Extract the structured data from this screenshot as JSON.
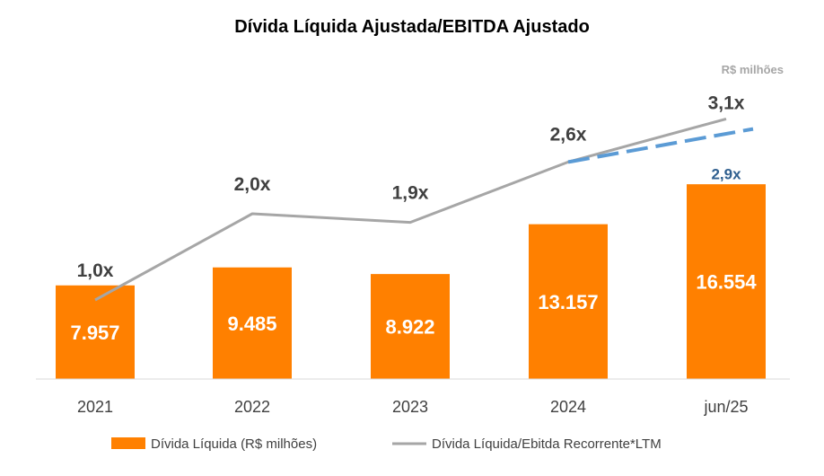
{
  "chart_data": {
    "type": "bar",
    "title": "Dívida Líquida Ajustada/EBITDA Ajustado",
    "unit_note": "R$ milhões",
    "categories": [
      "2021",
      "2022",
      "2023",
      "2024",
      "jun/25"
    ],
    "bar_series": {
      "name": "Dívida Líquida (R$ milhões)",
      "values": [
        7957,
        9485,
        8922,
        13157,
        16554
      ],
      "labels": [
        "7.957",
        "9.485",
        "8.922",
        "13.157",
        "16.554"
      ],
      "color": "#ff8000"
    },
    "line_series": {
      "name": "Dívida Líquida/Ebitda Recorrente*LTM",
      "values": [
        1.0,
        2.0,
        1.9,
        2.6,
        3.1
      ],
      "labels": [
        "1,0x",
        "2,0x",
        "1,9x",
        "2,6x",
        "3,1x"
      ],
      "color": "#a6a6a6"
    },
    "dashed_series": {
      "x": [
        "2024",
        "jun/25"
      ],
      "values": [
        2.6,
        2.9
      ],
      "labels": [
        "",
        "2,9x"
      ],
      "color": "#5b9bd5"
    },
    "legend": {
      "position": "bottom"
    },
    "grid": false
  }
}
